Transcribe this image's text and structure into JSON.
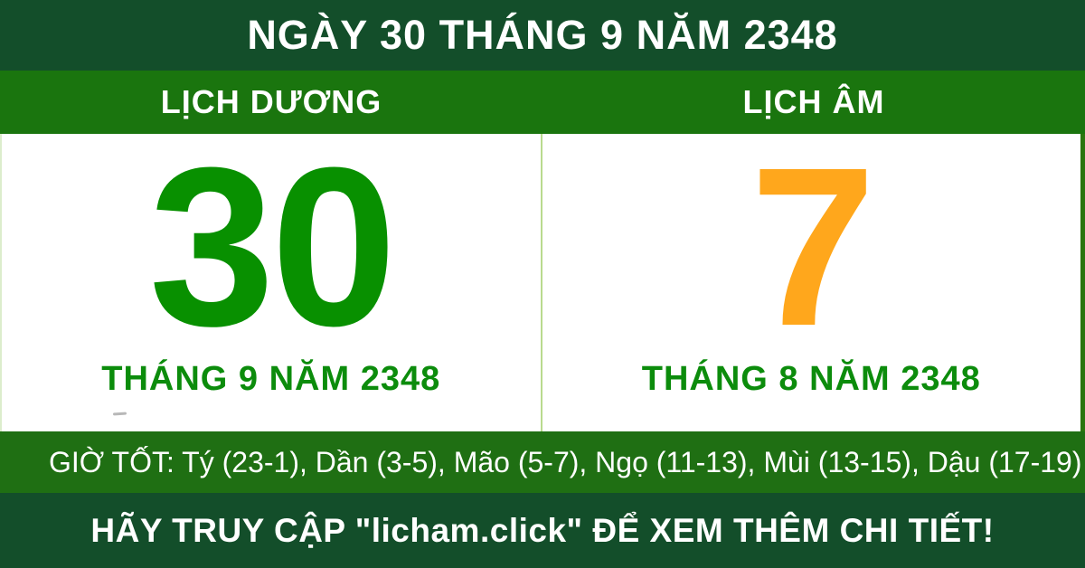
{
  "header": {
    "title": "NGÀY 30 THÁNG 9 NĂM 2348"
  },
  "calendar": {
    "solar": {
      "label": "LỊCH DƯƠNG",
      "day": "30",
      "month_year": "THÁNG 9 NĂM 2348"
    },
    "lunar": {
      "label": "LỊCH ÂM",
      "day": "7",
      "month_year": "THÁNG 8 NĂM 2348"
    }
  },
  "good_hours": {
    "text": "GIỜ TỐT: Tý (23-1), Dần (3-5), Mão (5-7), Ngọ (11-13), Mùi (13-15), Dậu (17-19)"
  },
  "footer": {
    "text": "HÃY TRUY CẬP \"licham.click\" ĐỂ XEM THÊM CHI TIẾT!"
  },
  "colors": {
    "dark_green": "#134e2a",
    "header_bar_green": "#1a750e",
    "good_hours_bar_green": "#1f6f13",
    "solar_day_green": "#089000",
    "month_text_green": "#0c8c0c",
    "lunar_day_orange": "#ffa71c",
    "panel_divider_light_green": "#b9da8e",
    "panel_background": "#ffffff",
    "text_white": "#ffffff"
  }
}
